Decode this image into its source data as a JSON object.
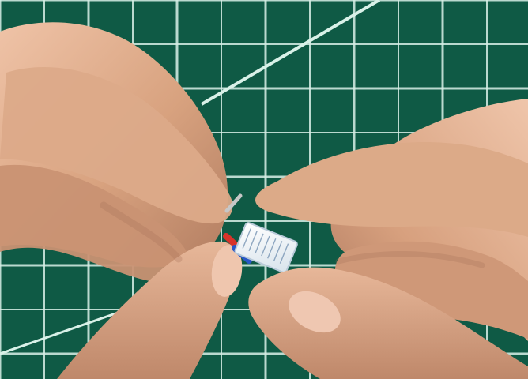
{
  "scene": {
    "colors": {
      "mat": "#0f5a45",
      "mat_shadow": "#0a4535",
      "grid_line": "#d7eee6",
      "diagonal_line": "#d9f1e8",
      "skin_light": "#e2b293",
      "skin_mid": "#d49d7a",
      "skin_dark": "#a9745b",
      "nail": "#ecc3ad",
      "connector": "#eef4f8",
      "connector_shadow": "#b9cad9",
      "wire_red": "#d8332a",
      "wire_blue": "#2858c8",
      "metal": "#c7c7c7"
    }
  }
}
